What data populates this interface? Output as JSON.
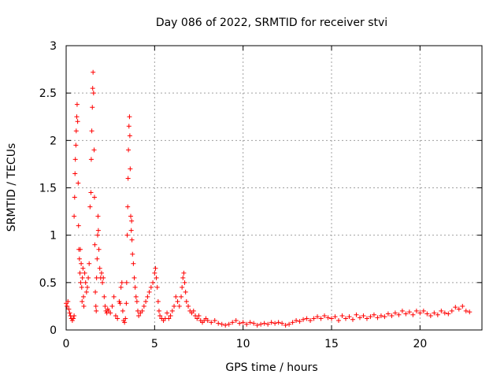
{
  "chart_data": {
    "type": "scatter",
    "title": "Day 086 of 2022, SRMTID for receiver stvi",
    "xlabel": "GPS time / hours",
    "ylabel": "SRMTID / TECUs",
    "xlim": [
      0,
      23.5
    ],
    "ylim": [
      0,
      3
    ],
    "xticks": [
      0,
      5,
      10,
      15,
      20
    ],
    "xtick_labels": [
      "0",
      "5",
      "10",
      "15",
      "20"
    ],
    "yticks": [
      0,
      0.5,
      1,
      1.5,
      2,
      2.5,
      3
    ],
    "ytick_labels": [
      "0",
      "0.5",
      "1",
      "1.5",
      "2",
      "2.5",
      "3"
    ],
    "grid": true,
    "marker": "+",
    "color": "#ff0000",
    "series": [
      {
        "name": "stvi",
        "points": [
          [
            0.0,
            0.28
          ],
          [
            0.05,
            0.25
          ],
          [
            0.1,
            0.3
          ],
          [
            0.15,
            0.22
          ],
          [
            0.2,
            0.18
          ],
          [
            0.25,
            0.15
          ],
          [
            0.3,
            0.12
          ],
          [
            0.35,
            0.1
          ],
          [
            0.4,
            0.12
          ],
          [
            0.45,
            0.15
          ],
          [
            0.45,
            1.2
          ],
          [
            0.48,
            1.4
          ],
          [
            0.5,
            1.65
          ],
          [
            0.52,
            1.8
          ],
          [
            0.55,
            1.95
          ],
          [
            0.57,
            2.1
          ],
          [
            0.6,
            2.25
          ],
          [
            0.62,
            2.38
          ],
          [
            0.65,
            2.2
          ],
          [
            0.68,
            1.55
          ],
          [
            0.7,
            1.1
          ],
          [
            0.72,
            0.85
          ],
          [
            0.75,
            0.75
          ],
          [
            0.78,
            0.6
          ],
          [
            0.8,
            0.85
          ],
          [
            0.82,
            0.5
          ],
          [
            0.85,
            0.7
          ],
          [
            0.88,
            0.45
          ],
          [
            0.9,
            0.3
          ],
          [
            0.92,
            0.55
          ],
          [
            0.95,
            0.65
          ],
          [
            0.98,
            0.35
          ],
          [
            1.0,
            0.25
          ],
          [
            1.05,
            0.6
          ],
          [
            1.1,
            0.5
          ],
          [
            1.15,
            0.4
          ],
          [
            1.2,
            0.45
          ],
          [
            1.25,
            0.55
          ],
          [
            1.3,
            0.7
          ],
          [
            1.35,
            1.3
          ],
          [
            1.4,
            1.45
          ],
          [
            1.42,
            1.8
          ],
          [
            1.45,
            2.1
          ],
          [
            1.48,
            2.35
          ],
          [
            1.5,
            2.55
          ],
          [
            1.52,
            2.72
          ],
          [
            1.55,
            2.5
          ],
          [
            1.58,
            1.9
          ],
          [
            1.6,
            1.4
          ],
          [
            1.62,
            0.9
          ],
          [
            1.65,
            0.4
          ],
          [
            1.68,
            0.25
          ],
          [
            1.7,
            0.2
          ],
          [
            1.72,
            0.55
          ],
          [
            1.75,
            0.75
          ],
          [
            1.78,
            1.0
          ],
          [
            1.8,
            1.2
          ],
          [
            1.82,
            1.05
          ],
          [
            1.85,
            0.85
          ],
          [
            1.9,
            0.65
          ],
          [
            1.95,
            0.55
          ],
          [
            2.0,
            0.6
          ],
          [
            2.05,
            0.5
          ],
          [
            2.1,
            0.55
          ],
          [
            2.15,
            0.35
          ],
          [
            2.2,
            0.25
          ],
          [
            2.25,
            0.2
          ],
          [
            2.3,
            0.18
          ],
          [
            2.35,
            0.22
          ],
          [
            2.4,
            0.2
          ],
          [
            2.5,
            0.18
          ],
          [
            2.6,
            0.25
          ],
          [
            2.7,
            0.35
          ],
          [
            2.8,
            0.15
          ],
          [
            2.9,
            0.12
          ],
          [
            3.0,
            0.3
          ],
          [
            3.05,
            0.28
          ],
          [
            3.1,
            0.45
          ],
          [
            3.15,
            0.5
          ],
          [
            3.2,
            0.2
          ],
          [
            3.25,
            0.1
          ],
          [
            3.3,
            0.08
          ],
          [
            3.35,
            0.12
          ],
          [
            3.4,
            0.28
          ],
          [
            3.42,
            0.5
          ],
          [
            3.45,
            1.0
          ],
          [
            3.48,
            1.3
          ],
          [
            3.5,
            1.6
          ],
          [
            3.52,
            1.9
          ],
          [
            3.55,
            2.15
          ],
          [
            3.58,
            2.25
          ],
          [
            3.6,
            2.05
          ],
          [
            3.62,
            1.7
          ],
          [
            3.65,
            1.2
          ],
          [
            3.68,
            1.05
          ],
          [
            3.7,
            1.15
          ],
          [
            3.72,
            0.95
          ],
          [
            3.75,
            0.8
          ],
          [
            3.8,
            0.7
          ],
          [
            3.85,
            0.55
          ],
          [
            3.9,
            0.45
          ],
          [
            3.95,
            0.35
          ],
          [
            4.0,
            0.3
          ],
          [
            4.05,
            0.2
          ],
          [
            4.1,
            0.15
          ],
          [
            4.2,
            0.18
          ],
          [
            4.3,
            0.2
          ],
          [
            4.4,
            0.25
          ],
          [
            4.5,
            0.3
          ],
          [
            4.6,
            0.35
          ],
          [
            4.7,
            0.4
          ],
          [
            4.8,
            0.45
          ],
          [
            4.9,
            0.5
          ],
          [
            5.0,
            0.6
          ],
          [
            5.05,
            0.65
          ],
          [
            5.1,
            0.55
          ],
          [
            5.15,
            0.45
          ],
          [
            5.2,
            0.3
          ],
          [
            5.25,
            0.2
          ],
          [
            5.3,
            0.15
          ],
          [
            5.4,
            0.12
          ],
          [
            5.5,
            0.1
          ],
          [
            5.6,
            0.12
          ],
          [
            5.7,
            0.18
          ],
          [
            5.8,
            0.12
          ],
          [
            5.9,
            0.15
          ],
          [
            6.0,
            0.2
          ],
          [
            6.1,
            0.25
          ],
          [
            6.2,
            0.35
          ],
          [
            6.3,
            0.3
          ],
          [
            6.4,
            0.25
          ],
          [
            6.5,
            0.35
          ],
          [
            6.55,
            0.45
          ],
          [
            6.6,
            0.55
          ],
          [
            6.65,
            0.6
          ],
          [
            6.7,
            0.5
          ],
          [
            6.75,
            0.4
          ],
          [
            6.8,
            0.3
          ],
          [
            6.9,
            0.25
          ],
          [
            7.0,
            0.2
          ],
          [
            7.1,
            0.18
          ],
          [
            7.2,
            0.2
          ],
          [
            7.3,
            0.15
          ],
          [
            7.4,
            0.12
          ],
          [
            7.5,
            0.15
          ],
          [
            7.6,
            0.1
          ],
          [
            7.7,
            0.08
          ],
          [
            7.8,
            0.1
          ],
          [
            7.9,
            0.12
          ],
          [
            8.0,
            0.1
          ],
          [
            8.2,
            0.08
          ],
          [
            8.4,
            0.1
          ],
          [
            8.6,
            0.07
          ],
          [
            8.8,
            0.06
          ],
          [
            9.0,
            0.05
          ],
          [
            9.2,
            0.06
          ],
          [
            9.4,
            0.08
          ],
          [
            9.6,
            0.1
          ],
          [
            9.8,
            0.07
          ],
          [
            10.0,
            0.08
          ],
          [
            10.2,
            0.06
          ],
          [
            10.4,
            0.08
          ],
          [
            10.6,
            0.07
          ],
          [
            10.8,
            0.05
          ],
          [
            11.0,
            0.06
          ],
          [
            11.2,
            0.07
          ],
          [
            11.4,
            0.06
          ],
          [
            11.6,
            0.08
          ],
          [
            11.8,
            0.07
          ],
          [
            12.0,
            0.08
          ],
          [
            12.2,
            0.07
          ],
          [
            12.4,
            0.05
          ],
          [
            12.6,
            0.06
          ],
          [
            12.8,
            0.08
          ],
          [
            13.0,
            0.1
          ],
          [
            13.2,
            0.09
          ],
          [
            13.4,
            0.11
          ],
          [
            13.6,
            0.12
          ],
          [
            13.8,
            0.1
          ],
          [
            14.0,
            0.12
          ],
          [
            14.2,
            0.14
          ],
          [
            14.4,
            0.12
          ],
          [
            14.6,
            0.15
          ],
          [
            14.8,
            0.13
          ],
          [
            15.0,
            0.12
          ],
          [
            15.2,
            0.14
          ],
          [
            15.4,
            0.1
          ],
          [
            15.6,
            0.15
          ],
          [
            15.8,
            0.12
          ],
          [
            16.0,
            0.14
          ],
          [
            16.2,
            0.11
          ],
          [
            16.4,
            0.16
          ],
          [
            16.6,
            0.13
          ],
          [
            16.8,
            0.15
          ],
          [
            17.0,
            0.12
          ],
          [
            17.2,
            0.14
          ],
          [
            17.4,
            0.16
          ],
          [
            17.6,
            0.13
          ],
          [
            17.8,
            0.15
          ],
          [
            18.0,
            0.14
          ],
          [
            18.2,
            0.17
          ],
          [
            18.4,
            0.15
          ],
          [
            18.6,
            0.18
          ],
          [
            18.8,
            0.16
          ],
          [
            19.0,
            0.2
          ],
          [
            19.2,
            0.17
          ],
          [
            19.4,
            0.19
          ],
          [
            19.6,
            0.16
          ],
          [
            19.8,
            0.2
          ],
          [
            20.0,
            0.18
          ],
          [
            20.2,
            0.2
          ],
          [
            20.4,
            0.17
          ],
          [
            20.6,
            0.15
          ],
          [
            20.8,
            0.18
          ],
          [
            21.0,
            0.16
          ],
          [
            21.2,
            0.2
          ],
          [
            21.4,
            0.18
          ],
          [
            21.6,
            0.17
          ],
          [
            21.8,
            0.2
          ],
          [
            22.0,
            0.24
          ],
          [
            22.2,
            0.22
          ],
          [
            22.4,
            0.25
          ],
          [
            22.6,
            0.2
          ],
          [
            22.8,
            0.19
          ]
        ]
      }
    ]
  }
}
